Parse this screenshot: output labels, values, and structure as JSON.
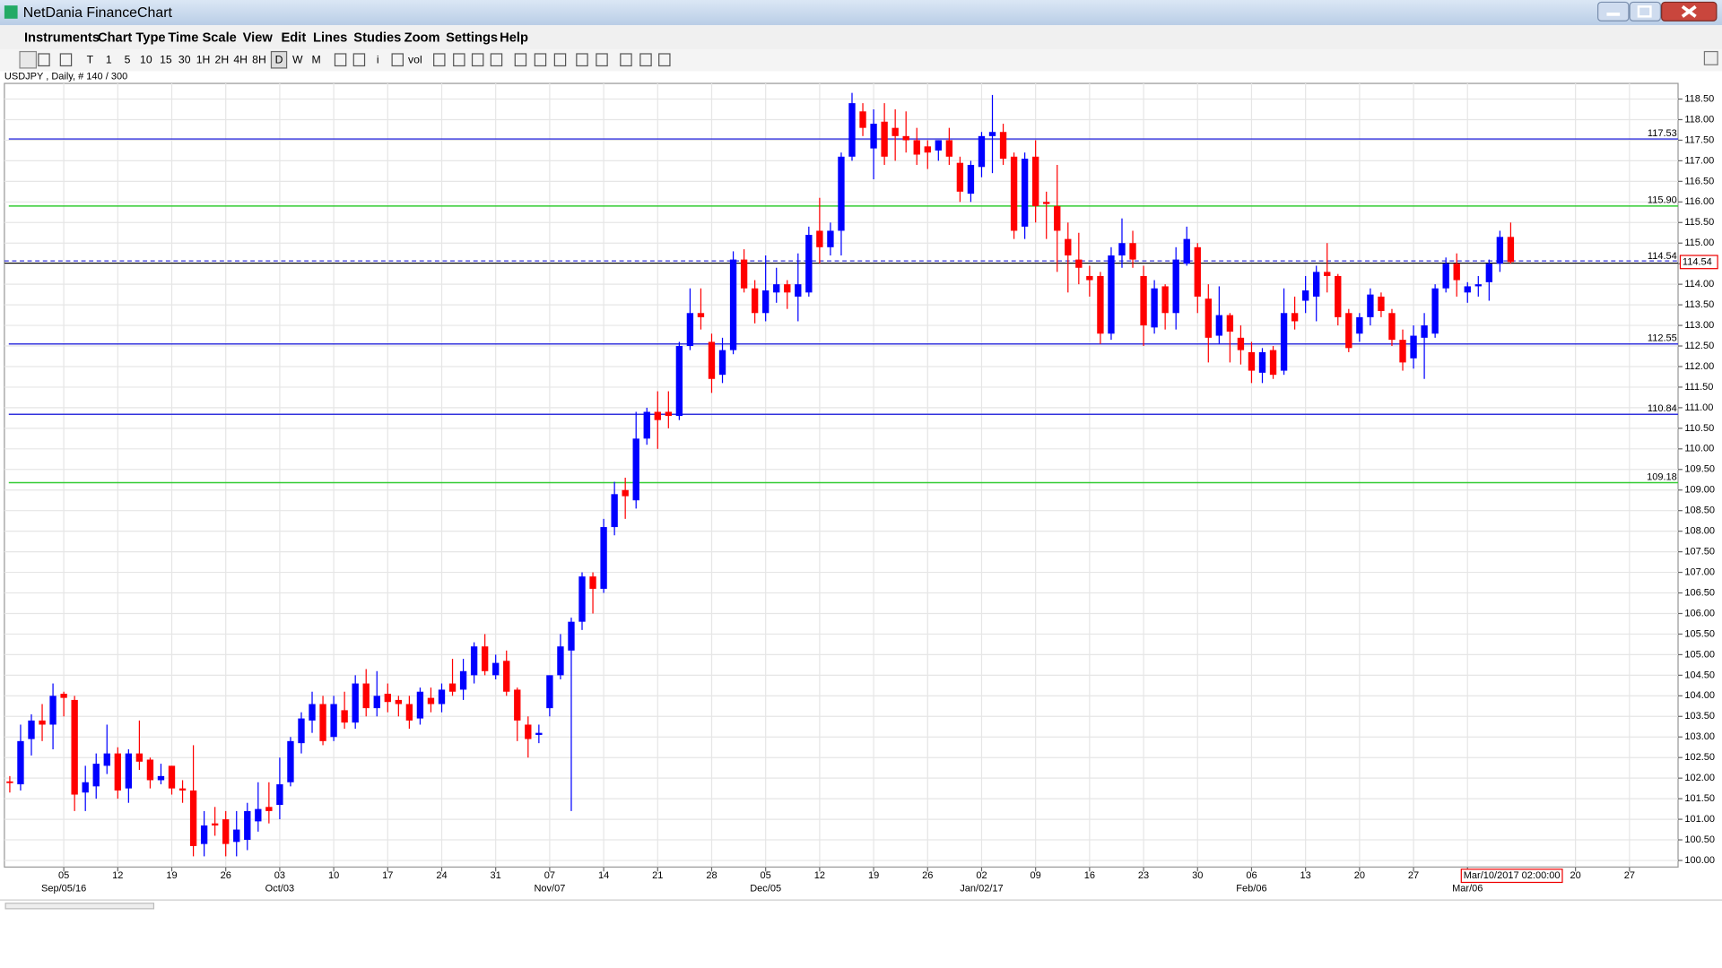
{
  "window": {
    "title": "NetDania FinanceChart"
  },
  "menu": [
    "Instruments",
    "Chart Type",
    "Time Scale",
    "View",
    "Edit",
    "Lines",
    "Studies",
    "Zoom",
    "Settings",
    "Help"
  ],
  "toolbar": [
    "T",
    "1",
    "5",
    "10",
    "15",
    "30",
    "1H",
    "2H",
    "4H",
    "8H",
    "D",
    "W",
    "M",
    "i",
    "vol"
  ],
  "chart_data": {
    "type": "candlestick",
    "subtitle": "USDJPY , Daily, # 140 / 300",
    "categories": [
      null,
      null,
      null,
      null,
      null,
      "05",
      null,
      null,
      null,
      null,
      "12",
      null,
      null,
      null,
      null,
      "19",
      null,
      null,
      null,
      null,
      "26",
      null,
      null,
      null,
      null,
      "03",
      null,
      null,
      null,
      null,
      "10",
      null,
      null,
      null,
      null,
      "17",
      null,
      null,
      null,
      null,
      "24",
      null,
      null,
      null,
      null,
      "31",
      null,
      null,
      null,
      null,
      "07",
      null,
      null,
      null,
      null,
      "14",
      null,
      null,
      null,
      null,
      "21",
      null,
      null,
      null,
      null,
      "28",
      null,
      null,
      null,
      null,
      "05",
      null,
      null,
      null,
      null,
      "12",
      null,
      null,
      null,
      null,
      "19",
      null,
      null,
      null,
      null,
      "26",
      null,
      null,
      null,
      null,
      "02",
      null,
      null,
      null,
      null,
      "09",
      null,
      null,
      null,
      null,
      "16",
      null,
      null,
      null,
      null,
      "23",
      null,
      null,
      null,
      null,
      "30",
      null,
      null,
      null,
      null,
      "06",
      null,
      null,
      null,
      null,
      "13",
      null,
      null,
      null,
      null,
      "20",
      null,
      null,
      null,
      null,
      "27",
      null,
      null,
      null,
      null,
      "06",
      null,
      null,
      null,
      null,
      null,
      null,
      null,
      null,
      null,
      "20",
      null,
      null,
      null,
      null,
      "27",
      null,
      null,
      null,
      null
    ],
    "category_sublabels": [
      null,
      null,
      null,
      null,
      null,
      "Sep/05/16",
      null,
      null,
      null,
      null,
      null,
      null,
      null,
      null,
      null,
      null,
      null,
      null,
      null,
      null,
      null,
      null,
      null,
      null,
      null,
      "Oct/03",
      null,
      null,
      null,
      null,
      null,
      null,
      null,
      null,
      null,
      null,
      null,
      null,
      null,
      null,
      null,
      null,
      null,
      null,
      null,
      null,
      null,
      null,
      null,
      null,
      "Nov/07",
      null,
      null,
      null,
      null,
      null,
      null,
      null,
      null,
      null,
      null,
      null,
      null,
      null,
      null,
      null,
      null,
      null,
      null,
      null,
      "Dec/05",
      null,
      null,
      null,
      null,
      null,
      null,
      null,
      null,
      null,
      null,
      null,
      null,
      null,
      null,
      null,
      null,
      null,
      null,
      null,
      "Jan/02/17",
      null,
      null,
      null,
      null,
      null,
      null,
      null,
      null,
      null,
      null,
      null,
      null,
      null,
      null,
      null,
      null,
      null,
      null,
      null,
      null,
      null,
      null,
      null,
      null,
      "Feb/06",
      null,
      null,
      null,
      null,
      null,
      null,
      null,
      null,
      null,
      null,
      null,
      null,
      null,
      null,
      null,
      null,
      null,
      null,
      null,
      "Mar/06",
      null,
      null,
      null,
      null,
      null,
      null,
      null,
      null,
      null,
      null,
      null,
      null,
      null,
      null,
      null,
      null,
      null,
      null,
      null
    ],
    "open": [
      101.92,
      101.85,
      102.95,
      103.4,
      103.3,
      104.05,
      103.9,
      101.65,
      101.8,
      102.3,
      102.6,
      101.75,
      102.6,
      102.45,
      101.95,
      102.3,
      101.75,
      101.7,
      100.4,
      100.9,
      101.0,
      100.45,
      100.5,
      100.95,
      101.3,
      101.35,
      101.9,
      102.85,
      103.4,
      103.8,
      103.0,
      103.65,
      103.35,
      104.3,
      103.7,
      104.05,
      103.9,
      103.8,
      103.45,
      103.95,
      103.8,
      104.3,
      104.15,
      104.5,
      105.2,
      104.5,
      104.85,
      104.15,
      103.3,
      103.05,
      103.7,
      104.5,
      105.1,
      105.8,
      106.9,
      106.6,
      108.1,
      109.0,
      108.75,
      110.25,
      110.9,
      110.9,
      110.8,
      112.5,
      113.3,
      112.6,
      111.8,
      112.4,
      114.6,
      113.9,
      113.3,
      113.8,
      114.0,
      113.7,
      113.8,
      115.3,
      114.9,
      115.3,
      117.1,
      118.2,
      117.3,
      117.95,
      117.8,
      117.6,
      117.5,
      117.35,
      117.25,
      117.5,
      116.95,
      116.2,
      116.85,
      117.6,
      117.7,
      117.1,
      115.4,
      117.1,
      116.0,
      115.9,
      115.1,
      114.6,
      114.2,
      114.2,
      112.8,
      114.7,
      115.0,
      114.2,
      112.95,
      113.95,
      113.3,
      114.5,
      114.9,
      113.65,
      112.75,
      113.25,
      112.7,
      112.35,
      111.85,
      112.4,
      111.9,
      113.3,
      113.6,
      113.7,
      114.3,
      114.2,
      113.3,
      112.8,
      113.2,
      113.7,
      113.3,
      112.65,
      112.2,
      112.7,
      112.8,
      113.9,
      114.5,
      113.8,
      113.95,
      114.05,
      114.5,
      115.15,
      null,
      null,
      null,
      null,
      null,
      null,
      null,
      null,
      null,
      null,
      null,
      null,
      null,
      null,
      null
    ],
    "high": [
      102.05,
      103.3,
      103.55,
      103.8,
      104.3,
      104.1,
      104.0,
      102.3,
      102.6,
      103.3,
      102.75,
      102.7,
      103.4,
      102.5,
      102.35,
      102.3,
      101.95,
      102.8,
      101.2,
      101.3,
      101.2,
      101.2,
      101.4,
      101.9,
      101.9,
      102.5,
      103.0,
      103.6,
      104.1,
      104.0,
      104.0,
      104.1,
      104.5,
      104.65,
      104.6,
      104.3,
      104.0,
      104.0,
      104.2,
      104.2,
      104.3,
      104.9,
      104.9,
      105.3,
      105.5,
      105.0,
      105.1,
      104.2,
      103.5,
      103.3,
      104.5,
      105.5,
      105.9,
      107.0,
      107.0,
      108.3,
      109.2,
      109.3,
      110.9,
      111.0,
      111.4,
      111.4,
      112.6,
      113.9,
      113.9,
      112.8,
      112.7,
      114.8,
      114.85,
      114.1,
      114.7,
      114.4,
      114.1,
      114.75,
      115.4,
      116.1,
      115.5,
      117.2,
      118.65,
      118.4,
      118.25,
      118.4,
      118.25,
      118.2,
      117.8,
      117.5,
      117.5,
      117.8,
      117.1,
      117.0,
      117.7,
      118.6,
      117.9,
      117.2,
      117.2,
      117.5,
      116.25,
      116.9,
      115.5,
      115.25,
      114.45,
      114.3,
      114.9,
      115.6,
      115.3,
      114.45,
      114.1,
      114.0,
      114.9,
      115.4,
      115.0,
      114.0,
      113.95,
      113.3,
      113.0,
      112.6,
      112.45,
      112.5,
      113.9,
      113.7,
      114.2,
      114.45,
      115.0,
      114.25,
      113.4,
      113.3,
      113.9,
      113.8,
      113.4,
      112.9,
      113.0,
      113.3,
      114.0,
      114.65,
      114.75,
      114.05,
      114.2,
      114.6,
      115.3,
      115.5,
      null,
      null,
      null,
      null,
      null,
      null,
      null,
      null,
      null,
      null,
      null,
      null,
      null,
      null,
      null
    ],
    "low": [
      101.65,
      101.7,
      102.55,
      102.9,
      102.7,
      103.5,
      101.2,
      101.2,
      101.5,
      102.1,
      101.5,
      101.4,
      102.2,
      101.75,
      101.85,
      101.6,
      101.4,
      100.1,
      100.1,
      100.6,
      100.1,
      100.1,
      100.25,
      100.7,
      100.9,
      101.0,
      101.8,
      102.6,
      103.1,
      102.8,
      102.9,
      103.2,
      103.2,
      103.5,
      103.5,
      103.6,
      103.5,
      103.2,
      103.3,
      103.6,
      103.6,
      104.0,
      103.9,
      104.3,
      104.5,
      104.4,
      104.0,
      102.9,
      102.5,
      102.85,
      103.5,
      104.4,
      101.2,
      105.6,
      106.0,
      106.5,
      107.9,
      108.3,
      108.55,
      110.1,
      110.0,
      110.5,
      110.7,
      112.4,
      112.9,
      111.36,
      111.6,
      112.3,
      113.8,
      113.05,
      113.1,
      113.55,
      113.4,
      113.1,
      113.7,
      114.5,
      114.7,
      114.7,
      117.0,
      117.6,
      116.55,
      116.9,
      117.0,
      117.2,
      116.9,
      116.8,
      117.0,
      116.9,
      116.0,
      116.0,
      116.6,
      116.7,
      116.9,
      115.1,
      115.1,
      115.5,
      115.1,
      114.3,
      113.8,
      114.0,
      113.7,
      112.55,
      112.65,
      114.4,
      114.4,
      112.5,
      112.8,
      112.9,
      112.9,
      114.45,
      113.3,
      112.1,
      112.55,
      112.1,
      112.05,
      111.6,
      111.6,
      111.7,
      111.8,
      112.9,
      113.3,
      113.1,
      113.8,
      113.0,
      112.35,
      112.6,
      113.0,
      113.2,
      112.5,
      111.9,
      111.95,
      111.7,
      112.7,
      113.8,
      113.7,
      113.55,
      113.7,
      113.6,
      114.3,
      114.5,
      null,
      null,
      null,
      null,
      null,
      null,
      null,
      null,
      null,
      null,
      null,
      null,
      null,
      null,
      null
    ],
    "close": [
      101.88,
      102.9,
      103.4,
      103.3,
      104.0,
      103.95,
      101.6,
      101.9,
      102.35,
      102.6,
      101.7,
      102.6,
      102.4,
      101.95,
      102.05,
      101.75,
      101.7,
      100.35,
      100.85,
      100.85,
      100.4,
      100.75,
      101.2,
      101.25,
      101.2,
      101.85,
      102.9,
      103.45,
      103.8,
      102.9,
      103.8,
      103.35,
      104.3,
      103.7,
      104.0,
      103.85,
      103.8,
      103.4,
      104.1,
      103.8,
      104.15,
      104.1,
      104.6,
      105.2,
      104.6,
      104.8,
      104.1,
      103.4,
      102.95,
      103.1,
      104.5,
      105.2,
      105.8,
      106.9,
      106.6,
      108.1,
      108.9,
      108.85,
      110.25,
      110.9,
      110.7,
      110.8,
      112.5,
      113.3,
      113.2,
      111.7,
      112.4,
      114.6,
      113.9,
      113.3,
      113.85,
      114.0,
      113.8,
      114.0,
      115.2,
      114.9,
      115.3,
      117.1,
      118.4,
      117.8,
      117.9,
      117.1,
      117.6,
      117.5,
      117.15,
      117.2,
      117.5,
      117.1,
      116.25,
      116.9,
      117.6,
      117.7,
      117.05,
      115.3,
      117.05,
      115.9,
      115.95,
      115.3,
      114.7,
      114.4,
      114.1,
      112.8,
      114.7,
      115.0,
      114.6,
      113.0,
      113.9,
      113.3,
      114.6,
      115.1,
      113.7,
      112.7,
      113.25,
      112.85,
      112.4,
      111.9,
      112.35,
      111.8,
      113.3,
      113.1,
      113.85,
      114.3,
      114.2,
      113.2,
      112.45,
      113.2,
      113.75,
      113.35,
      112.65,
      112.1,
      112.75,
      113.0,
      113.9,
      114.5,
      114.1,
      113.95,
      114.0,
      114.5,
      115.15,
      114.54,
      null,
      null,
      null,
      null,
      null,
      null,
      null,
      null,
      null,
      null,
      null,
      null,
      null,
      null,
      null
    ],
    "up_color": "#0000ff",
    "down_color": "#ff0000",
    "ylim": [
      99.84,
      118.88
    ],
    "yticks": [
      {
        "value": 100,
        "label": "100.00"
      },
      {
        "value": 100.5,
        "label": "100.50"
      },
      {
        "value": 101,
        "label": "101.00"
      },
      {
        "value": 101.5,
        "label": "101.50"
      },
      {
        "value": 102,
        "label": "102.00"
      },
      {
        "value": 102.5,
        "label": "102.50"
      },
      {
        "value": 103,
        "label": "103.00"
      },
      {
        "value": 103.5,
        "label": "103.50"
      },
      {
        "value": 104,
        "label": "104.00"
      },
      {
        "value": 104.5,
        "label": "104.50"
      },
      {
        "value": 105,
        "label": "105.00"
      },
      {
        "value": 105.5,
        "label": "105.50"
      },
      {
        "value": 106,
        "label": "106.00"
      },
      {
        "value": 106.5,
        "label": "106.50"
      },
      {
        "value": 107,
        "label": "107.00"
      },
      {
        "value": 107.5,
        "label": "107.50"
      },
      {
        "value": 108,
        "label": "108.00"
      },
      {
        "value": 108.5,
        "label": "108.50"
      },
      {
        "value": 109,
        "label": "109.00"
      },
      {
        "value": 109.5,
        "label": "109.50"
      },
      {
        "value": 110,
        "label": "110.00"
      },
      {
        "value": 110.5,
        "label": "110.50"
      },
      {
        "value": 111,
        "label": "111.00"
      },
      {
        "value": 111.5,
        "label": "111.50"
      },
      {
        "value": 112,
        "label": "112.00"
      },
      {
        "value": 112.5,
        "label": "112.50"
      },
      {
        "value": 113,
        "label": "113.00"
      },
      {
        "value": 113.5,
        "label": "113.50"
      },
      {
        "value": 114,
        "label": "114.00"
      },
      {
        "value": 114.5,
        "label": "114.50"
      },
      {
        "value": 115,
        "label": "115.00"
      },
      {
        "value": 115.5,
        "label": "115.50"
      },
      {
        "value": 116,
        "label": "116.00"
      },
      {
        "value": 116.5,
        "label": "116.50"
      },
      {
        "value": 117,
        "label": "117.00"
      },
      {
        "value": 117.5,
        "label": "117.50"
      },
      {
        "value": 118,
        "label": "118.00"
      },
      {
        "value": 118.5,
        "label": "118.50"
      }
    ],
    "grid": true,
    "levels": [
      {
        "value": 117.53,
        "label": "117.53",
        "color": "#3333dd"
      },
      {
        "value": 115.9,
        "label": "115.90",
        "color": "#33cc33"
      },
      {
        "value": 112.55,
        "label": "112.55",
        "color": "#3333dd"
      },
      {
        "value": 110.84,
        "label": "110.84",
        "color": "#3333dd"
      },
      {
        "value": 109.18,
        "label": "109.18",
        "color": "#33cc33"
      }
    ],
    "last_price": {
      "value": 114.54,
      "label": "114.54"
    },
    "cursor_label": "Mar/10/2017 02:00:00"
  }
}
